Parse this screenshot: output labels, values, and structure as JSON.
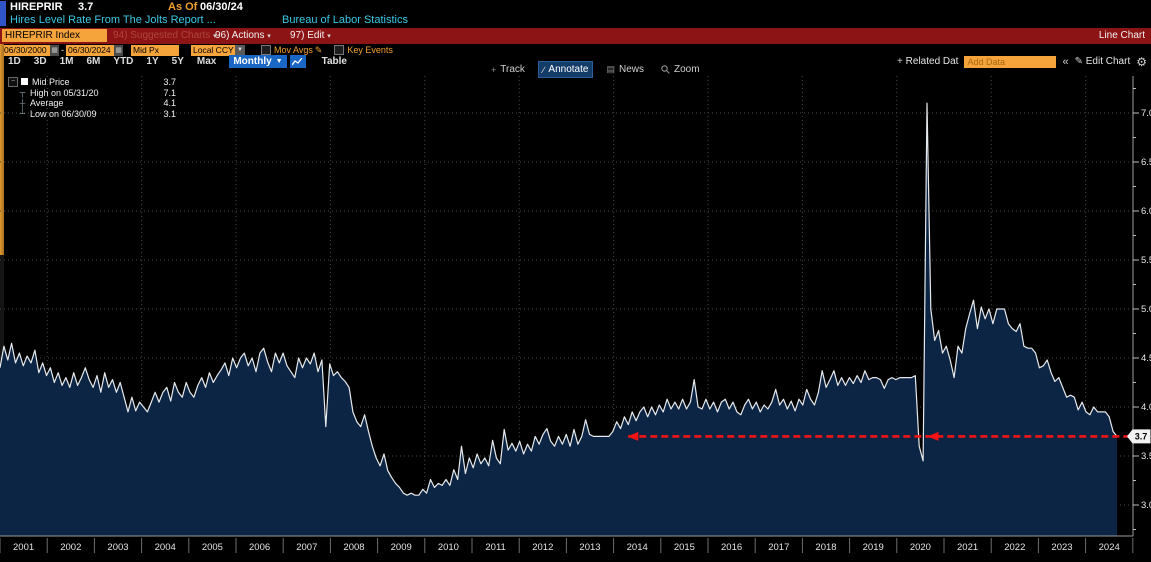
{
  "header": {
    "symbol": "HIREPRIR",
    "last": "3.7",
    "as_of_label": "As Of",
    "as_of_date": "06/30/24",
    "description": "Hires Level Rate From The Jolts Report ...",
    "source": "Bureau of Labor Statistics"
  },
  "red_toolbar": {
    "index_field": "HIREPRIR Index",
    "suggested_charts": "94) Suggested Charts",
    "actions": "96) Actions",
    "edit": "97) Edit",
    "chart_type": "Line Chart"
  },
  "controls": {
    "start_date": "06/30/2000",
    "range_separator": "-",
    "end_date": "06/30/2024",
    "price_field": "Mid Px",
    "currency": "Local CCY",
    "mov_avgs_label": "Mov Avgs",
    "key_events_label": "Key Events"
  },
  "period_bar": {
    "tabs": [
      "1D",
      "3D",
      "1M",
      "6M",
      "YTD",
      "1Y",
      "5Y",
      "Max"
    ],
    "frequency": "Monthly",
    "table_label": "Table"
  },
  "tools": {
    "track": "Track",
    "annotate": "Annotate",
    "news": "News",
    "zoom": "Zoom",
    "related_data": "Related Dat",
    "add_data_placeholder": "Add Data",
    "edit_chart": "Edit Chart"
  },
  "legend": {
    "rows": [
      {
        "marker": "square",
        "label": "Mid Price",
        "value": "3.7"
      },
      {
        "marker": "high",
        "label": "High on 05/31/20",
        "value": "7.1"
      },
      {
        "marker": "avg",
        "label": "Average",
        "value": "4.1"
      },
      {
        "marker": "low",
        "label": "Low on 06/30/09",
        "value": "3.1"
      }
    ]
  },
  "chart_data": {
    "type": "line",
    "title": "HIREPRIR Index - Hires Level Rate From The Jolts Report (Bureau of Labor Statistics)",
    "frequency": "monthly",
    "start_year": 2000.5,
    "end_year": 2024.5,
    "last_price": 3.7,
    "high": {
      "date": "05/31/20",
      "value": 7.1
    },
    "low": {
      "date": "06/30/09",
      "value": 3.1
    },
    "average": 4.1,
    "y_ticks": [
      3.0,
      3.5,
      4.0,
      4.5,
      5.0,
      5.5,
      6.0,
      6.5,
      7.0
    ],
    "x_labels": [
      "2001",
      "2002",
      "2003",
      "2004",
      "2005",
      "2006",
      "2007",
      "2008",
      "2009",
      "2010",
      "2011",
      "2012",
      "2013",
      "2014",
      "2015",
      "2016",
      "2017",
      "2018",
      "2019",
      "2020",
      "2021",
      "2022",
      "2023",
      "2024"
    ],
    "grid": "dotted",
    "legend_position": "top-left",
    "axis_side": "right",
    "annotation": {
      "type": "dashed-arrow-line",
      "value": 3.7,
      "start_year": 2014.0,
      "head_years": [
        2014.0,
        2020.45
      ],
      "color": "#f21414"
    },
    "series": [
      {
        "name": "Mid Price",
        "start": "2000-06",
        "values": [
          4.4,
          4.62,
          4.48,
          4.65,
          4.45,
          4.55,
          4.42,
          4.52,
          4.45,
          4.58,
          4.35,
          4.45,
          4.32,
          4.4,
          4.25,
          4.35,
          4.22,
          4.3,
          4.2,
          4.35,
          4.22,
          4.3,
          4.4,
          4.28,
          4.2,
          4.32,
          4.15,
          4.35,
          4.2,
          4.28,
          4.15,
          4.25,
          4.1,
          3.95,
          4.1,
          3.96,
          4.05,
          4.0,
          3.95,
          4.05,
          4.15,
          4.05,
          4.15,
          4.2,
          4.06,
          4.25,
          4.15,
          4.1,
          4.25,
          4.15,
          4.1,
          4.22,
          4.3,
          4.2,
          4.35,
          4.25,
          4.32,
          4.38,
          4.45,
          4.32,
          4.5,
          4.4,
          4.5,
          4.55,
          4.42,
          4.5,
          4.36,
          4.55,
          4.6,
          4.46,
          4.36,
          4.55,
          4.45,
          4.55,
          4.42,
          4.36,
          4.3,
          4.5,
          4.4,
          4.5,
          4.44,
          4.55,
          4.36,
          4.48,
          3.8,
          4.44,
          4.32,
          4.36,
          4.3,
          4.26,
          4.2,
          3.95,
          3.85,
          3.8,
          3.92,
          3.75,
          3.6,
          3.48,
          3.4,
          3.52,
          3.35,
          3.28,
          3.22,
          3.18,
          3.12,
          3.1,
          3.12,
          3.1,
          3.1,
          3.16,
          3.12,
          3.26,
          3.18,
          3.22,
          3.2,
          3.26,
          3.2,
          3.36,
          3.26,
          3.6,
          3.32,
          3.48,
          3.38,
          3.52,
          3.42,
          3.48,
          3.4,
          3.66,
          3.48,
          3.42,
          3.77,
          3.56,
          3.63,
          3.55,
          3.65,
          3.52,
          3.62,
          3.55,
          3.7,
          3.62,
          3.72,
          3.78,
          3.65,
          3.6,
          3.7,
          3.62,
          3.72,
          3.6,
          3.77,
          3.62,
          3.7,
          3.87,
          3.72,
          3.7,
          3.7,
          3.7,
          3.7,
          3.7,
          3.75,
          3.85,
          3.78,
          3.9,
          3.82,
          3.95,
          3.86,
          3.95,
          4.0,
          3.9,
          4.0,
          3.92,
          4.02,
          3.95,
          4.08,
          3.98,
          4.05,
          3.98,
          4.08,
          3.98,
          4.05,
          4.28,
          4.0,
          3.98,
          4.08,
          3.98,
          4.05,
          3.95,
          4.05,
          4.08,
          3.98,
          4.05,
          3.95,
          3.92,
          4.02,
          4.08,
          3.98,
          4.05,
          3.95,
          4.02,
          3.98,
          4.05,
          4.18,
          4.02,
          4.08,
          3.98,
          4.06,
          3.96,
          4.08,
          4.02,
          4.18,
          4.08,
          4.02,
          4.15,
          4.37,
          4.2,
          4.28,
          4.37,
          4.22,
          4.3,
          4.22,
          4.3,
          4.24,
          4.32,
          4.25,
          4.37,
          4.28,
          4.3,
          4.3,
          4.28,
          4.19,
          4.28,
          4.3,
          4.28,
          4.3,
          4.3,
          4.3,
          4.3,
          4.32,
          3.6,
          3.45,
          7.1,
          5.0,
          4.68,
          4.78,
          4.55,
          4.62,
          4.48,
          4.3,
          4.62,
          4.55,
          4.8,
          4.95,
          5.09,
          4.8,
          5.02,
          4.9,
          5.0,
          4.85,
          5.0,
          5.0,
          5.0,
          4.85,
          4.8,
          4.77,
          4.85,
          4.62,
          4.6,
          4.6,
          4.55,
          4.4,
          4.42,
          4.48,
          4.35,
          4.26,
          4.3,
          4.2,
          4.1,
          4.12,
          4.1,
          3.97,
          4.05,
          3.95,
          3.92,
          4.0,
          3.95,
          3.95,
          3.95,
          3.9,
          3.75,
          3.7
        ]
      }
    ]
  },
  "colors": {
    "background": "#000000",
    "area_fill": "#0d2544",
    "line": "#e6e9ec",
    "amber": "#f5a33b",
    "cyan": "#3cc8e3",
    "red_bar": "#8c1414",
    "blue_accent": "#1a66c4",
    "grid": "#474747",
    "annotation_red": "#f21414"
  }
}
